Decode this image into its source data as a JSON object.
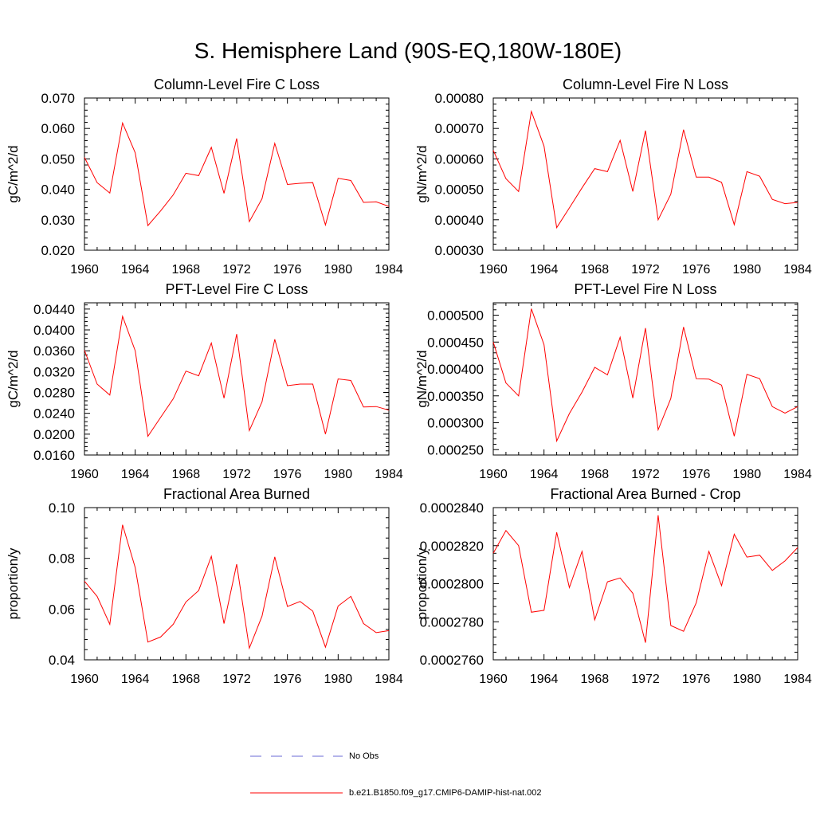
{
  "title": "S. Hemisphere Land (90S-EQ,180W-180E)",
  "colors": {
    "series": "#ff0000",
    "obs": "#6a6ad6",
    "axis": "#000000"
  },
  "legend": [
    {
      "label": "No Obs",
      "style": "dashed",
      "color": "#6a6ad6"
    },
    {
      "label": "b.e21.B1850.f09_g17.CMIP6-DAMIP-hist-nat.002",
      "style": "solid",
      "color": "#ff0000"
    }
  ],
  "chart_data": [
    {
      "type": "line",
      "title": "Column-Level Fire C Loss",
      "ylabel": "gC/m^2/d",
      "xlim": [
        1960,
        1984
      ],
      "ylim": [
        0.02,
        0.07
      ],
      "yticks": [
        "0.020",
        "0.030",
        "0.040",
        "0.050",
        "0.060",
        "0.070"
      ],
      "xticks": [
        "1960",
        "1964",
        "1968",
        "1972",
        "1976",
        "1980",
        "1984"
      ],
      "x": [
        1960,
        1961,
        1962,
        1963,
        1964,
        1965,
        1966,
        1967,
        1968,
        1969,
        1970,
        1971,
        1972,
        1973,
        1974,
        1975,
        1976,
        1977,
        1978,
        1979,
        1980,
        1981,
        1982,
        1983,
        1984
      ],
      "series": [
        {
          "values": [
            0.0505,
            0.0422,
            0.0388,
            0.0618,
            0.052,
            0.0281,
            0.0329,
            0.0382,
            0.0453,
            0.0445,
            0.0538,
            0.0387,
            0.0567,
            0.0294,
            0.0369,
            0.0551,
            0.0416,
            0.042,
            0.0422,
            0.0283,
            0.0436,
            0.0429,
            0.0357,
            0.0359,
            0.0344
          ]
        }
      ]
    },
    {
      "type": "line",
      "title": "Column-Level Fire N Loss",
      "ylabel": "gN/m^2/d",
      "xlim": [
        1960,
        1984
      ],
      "ylim": [
        0.0003,
        0.0008
      ],
      "yticks": [
        "0.00030",
        "0.00040",
        "0.00050",
        "0.00060",
        "0.00070",
        "0.00080"
      ],
      "xticks": [
        "1960",
        "1964",
        "1968",
        "1972",
        "1976",
        "1980",
        "1984"
      ],
      "x": [
        1960,
        1961,
        1962,
        1963,
        1964,
        1965,
        1966,
        1967,
        1968,
        1969,
        1970,
        1971,
        1972,
        1973,
        1974,
        1975,
        1976,
        1977,
        1978,
        1979,
        1980,
        1981,
        1982,
        1983,
        1984
      ],
      "series": [
        {
          "values": [
            0.000628,
            0.000535,
            0.000493,
            0.000756,
            0.000642,
            0.000374,
            0.000439,
            0.000505,
            0.000568,
            0.000558,
            0.000661,
            0.000493,
            0.000693,
            0.0004,
            0.000484,
            0.000696,
            0.00054,
            0.00054,
            0.000523,
            0.000384,
            0.000558,
            0.000543,
            0.000467,
            0.000453,
            0.000457
          ]
        }
      ]
    },
    {
      "type": "line",
      "title": "PFT-Level Fire C Loss",
      "ylabel": "gC/m^2/d",
      "xlim": [
        1960,
        1984
      ],
      "ylim": [
        0.016,
        0.0452
      ],
      "yticks": [
        "0.0160",
        "0.0200",
        "0.0240",
        "0.0280",
        "0.0320",
        "0.0360",
        "0.0400",
        "0.0440"
      ],
      "xticks": [
        "1960",
        "1964",
        "1968",
        "1972",
        "1976",
        "1980",
        "1984"
      ],
      "x": [
        1960,
        1961,
        1962,
        1963,
        1964,
        1965,
        1966,
        1967,
        1968,
        1969,
        1970,
        1971,
        1972,
        1973,
        1974,
        1975,
        1976,
        1977,
        1978,
        1979,
        1980,
        1981,
        1982,
        1983,
        1984
      ],
      "series": [
        {
          "values": [
            0.0361,
            0.0296,
            0.0275,
            0.0426,
            0.036,
            0.0196,
            0.0232,
            0.0268,
            0.0321,
            0.0312,
            0.0375,
            0.0269,
            0.0392,
            0.0207,
            0.0262,
            0.0382,
            0.0293,
            0.0296,
            0.0296,
            0.02,
            0.0306,
            0.0303,
            0.0252,
            0.0253,
            0.0246
          ]
        }
      ]
    },
    {
      "type": "line",
      "title": "PFT-Level Fire N Loss",
      "ylabel": "gN/m^2/d",
      "xlim": [
        1960,
        1984
      ],
      "ylim": [
        0.00024,
        0.000523
      ],
      "yticks": [
        "0.000250",
        "0.000300",
        "0.000350",
        "0.000400",
        "0.000450",
        "0.000500"
      ],
      "xticks": [
        "1960",
        "1964",
        "1968",
        "1972",
        "1976",
        "1980",
        "1984"
      ],
      "x": [
        1960,
        1961,
        1962,
        1963,
        1964,
        1965,
        1966,
        1967,
        1968,
        1969,
        1970,
        1971,
        1972,
        1973,
        1974,
        1975,
        1976,
        1977,
        1978,
        1979,
        1980,
        1981,
        1982,
        1983,
        1984
      ],
      "series": [
        {
          "values": [
            0.00045,
            0.000374,
            0.00035,
            0.000512,
            0.000445,
            0.000266,
            0.000317,
            0.000357,
            0.000403,
            0.000389,
            0.000459,
            0.000346,
            0.000476,
            0.000287,
            0.000345,
            0.000478,
            0.000382,
            0.000381,
            0.00037,
            0.000275,
            0.00039,
            0.000382,
            0.00033,
            0.000318,
            0.00033
          ]
        }
      ]
    },
    {
      "type": "line",
      "title": "Fractional Area Burned",
      "ylabel": "proportion/y",
      "xlim": [
        1960,
        1984
      ],
      "ylim": [
        0.04,
        0.1
      ],
      "yticks": [
        "0.04",
        "0.06",
        "0.08",
        "0.10"
      ],
      "xticks": [
        "1960",
        "1964",
        "1968",
        "1972",
        "1976",
        "1980",
        "1984"
      ],
      "x": [
        1960,
        1961,
        1962,
        1963,
        1964,
        1965,
        1966,
        1967,
        1968,
        1969,
        1970,
        1971,
        1972,
        1973,
        1974,
        1975,
        1976,
        1977,
        1978,
        1979,
        1980,
        1981,
        1982,
        1983,
        1984
      ],
      "series": [
        {
          "values": [
            0.071,
            0.065,
            0.054,
            0.0932,
            0.0763,
            0.047,
            0.049,
            0.054,
            0.0628,
            0.0673,
            0.0808,
            0.0543,
            0.0777,
            0.0446,
            0.0572,
            0.0806,
            0.061,
            0.063,
            0.0592,
            0.045,
            0.0612,
            0.065,
            0.0543,
            0.0507,
            0.0515
          ]
        }
      ]
    },
    {
      "type": "line",
      "title": "Fractional Area Burned - Crop",
      "ylabel": "proportion/y",
      "xlim": [
        1960,
        1984
      ],
      "ylim": [
        0.000276,
        0.000284
      ],
      "yticks": [
        "0.0002760",
        "0.0002780",
        "0.0002800",
        "0.0002820",
        "0.0002840"
      ],
      "xticks": [
        "1960",
        "1964",
        "1968",
        "1972",
        "1976",
        "1980",
        "1984"
      ],
      "x": [
        1960,
        1961,
        1962,
        1963,
        1964,
        1965,
        1966,
        1967,
        1968,
        1969,
        1970,
        1971,
        1972,
        1973,
        1974,
        1975,
        1976,
        1977,
        1978,
        1979,
        1980,
        1981,
        1982,
        1983,
        1984
      ],
      "series": [
        {
          "values": [
            0.0002816,
            0.0002828,
            0.000282,
            0.0002785,
            0.0002786,
            0.0002827,
            0.0002798,
            0.0002817,
            0.0002781,
            0.0002801,
            0.0002803,
            0.0002795,
            0.0002769,
            0.0002836,
            0.0002778,
            0.0002775,
            0.000279,
            0.0002817,
            0.0002799,
            0.0002826,
            0.0002814,
            0.0002815,
            0.0002807,
            0.0002812,
            0.0002819
          ]
        }
      ]
    }
  ]
}
